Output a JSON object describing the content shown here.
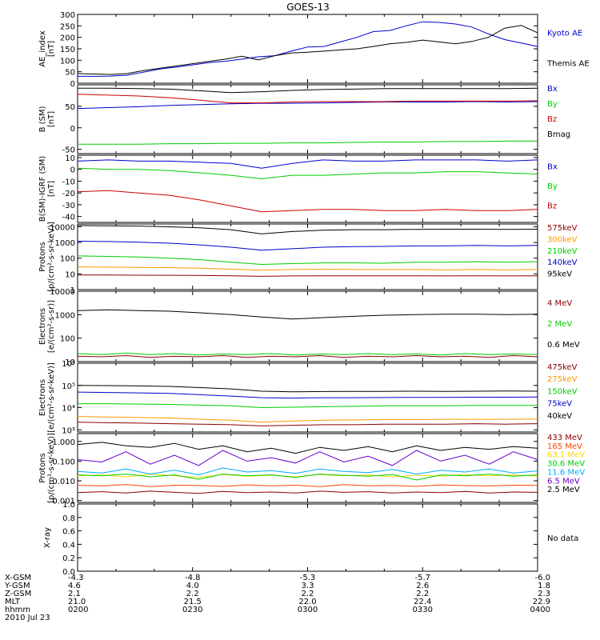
{
  "title": "GOES-13",
  "chart_data": [
    {
      "type": "line",
      "ylabel": "AE_index\n[nT]",
      "ylim": [
        0,
        300
      ],
      "yticks": [
        "0",
        "50",
        "100",
        "150",
        "200",
        "250",
        "300"
      ],
      "series": [
        {
          "name": "Kyoto AE",
          "color": "#0000cc",
          "values": [
            30,
            30,
            31,
            35,
            48,
            62,
            70,
            80,
            90,
            96,
            105,
            115,
            120,
            140,
            158,
            160,
            180,
            200,
            225,
            230,
            250,
            268,
            265,
            258,
            245,
            215,
            190,
            175,
            160
          ]
        },
        {
          "name": "Themis AE",
          "color": "#000000",
          "values": [
            42,
            40,
            38,
            42,
            55,
            65,
            75,
            85,
            95,
            105,
            118,
            102,
            120,
            132,
            135,
            140,
            145,
            150,
            160,
            172,
            178,
            188,
            180,
            172,
            182,
            200,
            240,
            252,
            220
          ]
        }
      ]
    },
    {
      "type": "line",
      "ylabel": "B (SM)\n[nT]",
      "ylim": [
        -60,
        100
      ],
      "yticks": [
        "-50",
        "0",
        "50"
      ],
      "series": [
        {
          "name": "Bx",
          "color": "#0000cc",
          "values": [
            45,
            47,
            49,
            52,
            54,
            56,
            57,
            57,
            58,
            59,
            60,
            60,
            60,
            61,
            60,
            61
          ]
        },
        {
          "name": "By",
          "color": "#00cc00",
          "values": [
            -38,
            -38,
            -38,
            -37,
            -37,
            -36,
            -36,
            -35,
            -35,
            -34,
            -33,
            -33,
            -32,
            -32,
            -31,
            -31
          ]
        },
        {
          "name": "Bz",
          "color": "#cc0000",
          "values": [
            78,
            76,
            74,
            70,
            64,
            58,
            58,
            60,
            61,
            61,
            61,
            62,
            62,
            62,
            62,
            63
          ]
        },
        {
          "name": "Bmag",
          "color": "#000000",
          "values": [
            92,
            92,
            91,
            90,
            86,
            82,
            84,
            87,
            89,
            90,
            91,
            91,
            91,
            91,
            91,
            92
          ]
        }
      ]
    },
    {
      "type": "line",
      "ylabel": "B(SM)-IGRF (SM)\n[nT]",
      "ylim": [
        -45,
        12
      ],
      "yticks": [
        "-40",
        "-30",
        "-20",
        "-10",
        "0",
        "10"
      ],
      "series": [
        {
          "name": "Bx",
          "color": "#0000cc",
          "values": [
            7,
            8,
            7,
            7,
            6,
            5,
            1,
            5,
            8,
            7,
            7,
            8,
            8,
            8,
            7,
            8
          ]
        },
        {
          "name": "By",
          "color": "#00cc00",
          "values": [
            1,
            0,
            0,
            -1,
            -3,
            -5,
            -8,
            -5,
            -5,
            -4,
            -3,
            -3,
            -2,
            -2,
            -3,
            -4
          ]
        },
        {
          "name": "Bz",
          "color": "#cc0000",
          "values": [
            -19,
            -18,
            -20,
            -22,
            -26,
            -31,
            -36,
            -35,
            -34,
            -34,
            -35,
            -35,
            -34,
            -35,
            -35,
            -34
          ]
        }
      ]
    },
    {
      "type": "line",
      "ylabel": "Protons\n[p/(cm²-s-sr-keV)]",
      "yscale": "log",
      "ylim": [
        1,
        15000
      ],
      "yticks": [
        "1",
        "10",
        "100",
        "1000",
        "10000"
      ],
      "series": [
        {
          "name": "575keV",
          "color": "#8b0000",
          "values": [
            8.5,
            8.5,
            8.3,
            8.2,
            8.0,
            7.6,
            7.0,
            7.4,
            7.6,
            7.6,
            7.5,
            7.5,
            7.4,
            7.5,
            7.4,
            7.5
          ]
        },
        {
          "name": "300keV",
          "color": "#ff9900",
          "values": [
            28,
            27,
            26,
            25,
            23,
            20,
            17,
            19,
            20,
            19,
            19,
            19,
            18,
            19,
            18,
            19
          ]
        },
        {
          "name": "210keV",
          "color": "#00cc00",
          "values": [
            140,
            130,
            120,
            100,
            80,
            55,
            40,
            45,
            50,
            50,
            48,
            55,
            55,
            60,
            55,
            60
          ]
        },
        {
          "name": "140keV",
          "color": "#0000cc",
          "values": [
            1200,
            1150,
            1050,
            900,
            700,
            500,
            320,
            400,
            500,
            550,
            560,
            600,
            600,
            650,
            600,
            650
          ]
        },
        {
          "name": "95keV",
          "color": "#000000",
          "values": [
            12000,
            11500,
            11000,
            10000,
            8500,
            6500,
            3500,
            5000,
            6000,
            6500,
            6500,
            6800,
            7000,
            7000,
            6800,
            7000
          ]
        }
      ]
    },
    {
      "type": "line",
      "ylabel": "Electrons\n[e/(cm²-s-sr)]",
      "yscale": "log",
      "ylim": [
        10,
        10000
      ],
      "yticks": [
        "10",
        "100",
        "1000",
        "10000"
      ],
      "series": [
        {
          "name": "4 MeV",
          "color": "#8b0000",
          "values": [
            17,
            16,
            18,
            15,
            17,
            16,
            18,
            15,
            17,
            16,
            18,
            15,
            17,
            16,
            18,
            16,
            17,
            15,
            18,
            16
          ]
        },
        {
          "name": "2 MeV",
          "color": "#00cc00",
          "values": [
            22,
            20,
            23,
            20,
            22,
            19,
            21,
            20,
            22,
            19,
            21,
            20,
            22,
            20,
            21,
            19,
            22,
            20,
            21,
            20
          ]
        },
        {
          "name": "0.6 MeV",
          "color": "#000000",
          "values": [
            1500,
            1600,
            1500,
            1400,
            1200,
            1000,
            800,
            650,
            750,
            850,
            950,
            1000,
            1050,
            1050,
            1000,
            1050
          ]
        }
      ]
    },
    {
      "type": "line",
      "ylabel": "Electrons\n[e/(cm²-s-sr-keV)]",
      "yscale": "log",
      "ylim": [
        800,
        1000000
      ],
      "yticks": [
        "10³",
        "10⁴",
        "10⁵",
        "10⁶"
      ],
      "series": [
        {
          "name": "475keV",
          "color": "#8b0000",
          "values": [
            2200,
            2100,
            2000,
            1900,
            1800,
            1700,
            1500,
            1600,
            1700,
            1700,
            1800,
            1800,
            1800,
            1900,
            1800,
            1900
          ]
        },
        {
          "name": "275keV",
          "color": "#ff9900",
          "values": [
            4000,
            3800,
            3600,
            3400,
            3000,
            2700,
            2200,
            2500,
            2700,
            2800,
            2900,
            2900,
            3000,
            3000,
            3000,
            3100
          ]
        },
        {
          "name": "150keV",
          "color": "#00cc00",
          "values": [
            15000,
            15000,
            14500,
            14000,
            13000,
            12000,
            10000,
            10500,
            11000,
            11500,
            12000,
            12000,
            12000,
            12500,
            12500,
            12500
          ]
        },
        {
          "name": "75keV",
          "color": "#0000cc",
          "values": [
            50000,
            48000,
            46000,
            44000,
            38000,
            33000,
            28000,
            27000,
            28000,
            28000,
            28500,
            29000,
            29000,
            29500,
            29500,
            30000
          ]
        },
        {
          "name": "40keV",
          "color": "#000000",
          "values": [
            100000,
            98000,
            95000,
            90000,
            80000,
            70000,
            55000,
            52000,
            53000,
            54000,
            54000,
            55000,
            54000,
            55000,
            56000,
            55000
          ]
        }
      ]
    },
    {
      "type": "line",
      "ylabel": "Protons\n[p/(cm²-s-sr-keV)]",
      "yscale": "log",
      "ylim": [
        0.0008,
        2.5
      ],
      "yticks": [
        "0.001",
        "0.010",
        "0.100",
        "1.000"
      ],
      "series": [
        {
          "name": "433 MeV",
          "color": "#8b0000",
          "values": [
            0.0025,
            0.0028,
            0.0024,
            0.003,
            0.0026,
            0.0023,
            0.0029,
            0.0025,
            0.0027,
            0.0024,
            0.003,
            0.0026,
            0.0028,
            0.0024,
            0.0027,
            0.0025,
            0.0029,
            0.0024,
            0.0027,
            0.0026
          ]
        },
        {
          "name": "165 MeV",
          "color": "#ff4500",
          "values": [
            0.006,
            0.0055,
            0.0065,
            0.005,
            0.006,
            0.0058,
            0.0052,
            0.0062,
            0.0056,
            0.006,
            0.005,
            0.0064,
            0.0056,
            0.0058,
            0.0052,
            0.0062,
            0.0057,
            0.0055,
            0.006,
            0.0058
          ]
        },
        {
          "name": "63.1 MeV",
          "color": "#ffd700",
          "values": [
            0.018,
            0.02,
            0.016,
            0.022,
            0.018,
            0.015,
            0.021,
            0.017,
            0.019,
            0.016,
            0.021,
            0.018,
            0.02,
            0.016,
            0.019,
            0.017,
            0.021,
            0.018,
            0.02,
            0.017
          ]
        },
        {
          "name": "30.6 MeV",
          "color": "#00cc00",
          "values": [
            0.02,
            0.018,
            0.022,
            0.016,
            0.02,
            0.012,
            0.022,
            0.018,
            0.02,
            0.015,
            0.022,
            0.019,
            0.017,
            0.021,
            0.011,
            0.02,
            0.018,
            0.022,
            0.017,
            0.02
          ]
        },
        {
          "name": "11.6 MeV",
          "color": "#00aaff",
          "values": [
            0.03,
            0.025,
            0.04,
            0.022,
            0.035,
            0.02,
            0.045,
            0.028,
            0.033,
            0.024,
            0.04,
            0.03,
            0.026,
            0.038,
            0.022,
            0.034,
            0.028,
            0.04,
            0.025,
            0.032
          ]
        },
        {
          "name": "6.5 MeV",
          "color": "#6600cc",
          "values": [
            0.12,
            0.09,
            0.3,
            0.07,
            0.2,
            0.06,
            0.35,
            0.1,
            0.15,
            0.08,
            0.3,
            0.09,
            0.18,
            0.06,
            0.35,
            0.1,
            0.2,
            0.07,
            0.3,
            0.12
          ]
        },
        {
          "name": "2.5 MeV",
          "color": "#000000",
          "values": [
            0.7,
            0.9,
            0.6,
            0.5,
            0.8,
            0.4,
            0.6,
            0.3,
            0.45,
            0.25,
            0.5,
            0.35,
            0.55,
            0.3,
            0.6,
            0.35,
            0.5,
            0.4,
            0.55,
            0.45
          ]
        }
      ]
    },
    {
      "type": "line",
      "ylabel": "X-ray",
      "ylim": [
        0,
        1
      ],
      "yticks": [
        "0.0",
        "0.2",
        "0.4",
        "0.6",
        "0.8",
        "1.0"
      ],
      "no_data_label": "No data",
      "series": []
    }
  ],
  "footer": {
    "row_labels": [
      "X-GSM",
      "Y-GSM",
      "Z-GSM",
      "MLT",
      "hhmm",
      "2010 Jul 23"
    ],
    "columns": [
      {
        "x_gsm": "-4.3",
        "y_gsm": "4.6",
        "z_gsm": "2.1",
        "mlt": "21.0",
        "hhmm": "0200"
      },
      {
        "x_gsm": "-4.8",
        "y_gsm": "4.0",
        "z_gsm": "2.2",
        "mlt": "21.5",
        "hhmm": "0230"
      },
      {
        "x_gsm": "-5.3",
        "y_gsm": "3.3",
        "z_gsm": "2.2",
        "mlt": "22.0",
        "hhmm": "0300"
      },
      {
        "x_gsm": "-5.7",
        "y_gsm": "2.6",
        "z_gsm": "2.2",
        "mlt": "22.4",
        "hhmm": "0330"
      },
      {
        "x_gsm": "-6.0",
        "y_gsm": "1.8",
        "z_gsm": "2.3",
        "mlt": "22.9",
        "hhmm": "0400"
      }
    ]
  }
}
